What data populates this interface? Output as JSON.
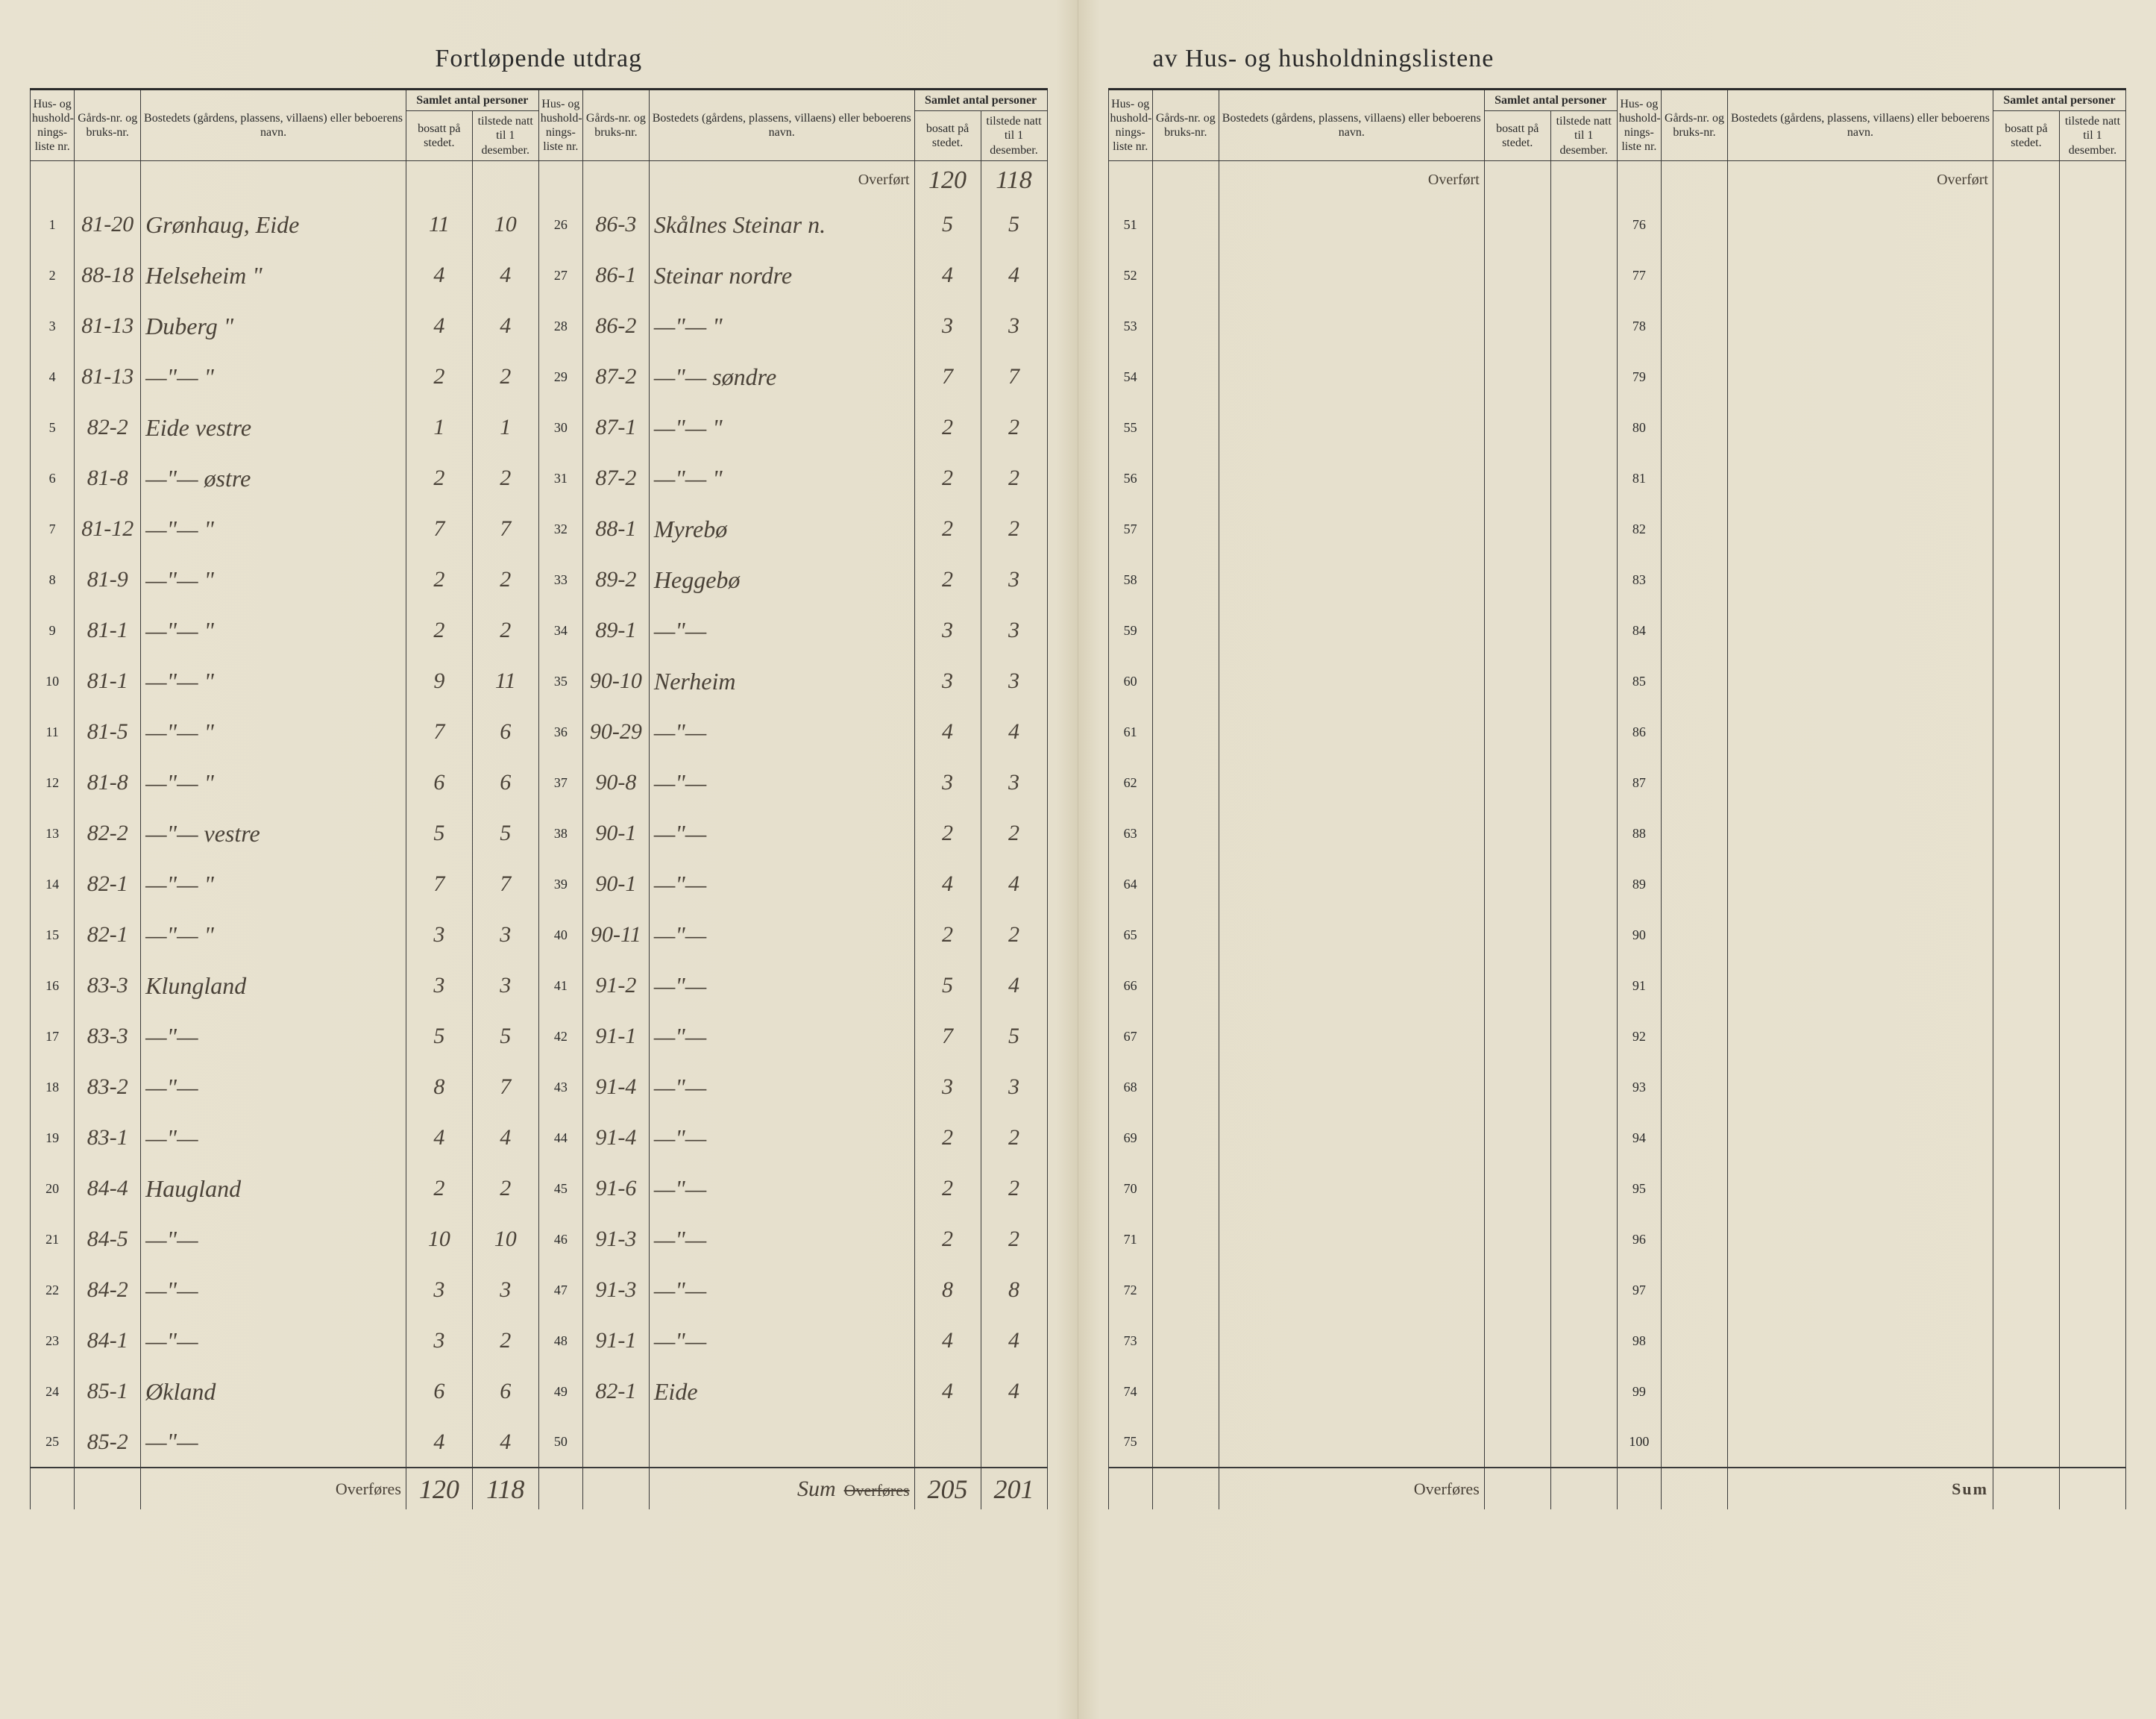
{
  "title_left": "Fortløpende utdrag",
  "title_right": "av Hus- og husholdningslistene",
  "headers": {
    "rownum": "Hus- og hushold-nings-liste nr.",
    "gard": "Gårds-nr. og bruks-nr.",
    "name": "Bostedets (gårdens, plassens, villaens) eller beboerens navn.",
    "group": "Samlet antal personer",
    "bosatt": "bosatt på stedet.",
    "tilstede": "tilstede natt til 1 desember."
  },
  "overfort_label": "Overført",
  "overfores_label": "Overføres",
  "sum_label": "Sum",
  "overfort_b": "120",
  "overfort_t": "118",
  "columns_left_1": [
    {
      "n": "1",
      "g": "81-20",
      "name": "Grønhaug, Eide",
      "b": "11",
      "t": "10"
    },
    {
      "n": "2",
      "g": "88-18",
      "name": "Helseheim     \"",
      "b": "4",
      "t": "4"
    },
    {
      "n": "3",
      "g": "81-13",
      "name": "Duberg        \"",
      "b": "4",
      "t": "4"
    },
    {
      "n": "4",
      "g": "81-13",
      "name": "—\"—           \"",
      "b": "2",
      "t": "2"
    },
    {
      "n": "5",
      "g": "82-2",
      "name": "Eide vestre",
      "b": "1",
      "t": "1"
    },
    {
      "n": "6",
      "g": "81-8",
      "name": "—\"—   østre",
      "b": "2",
      "t": "2"
    },
    {
      "n": "7",
      "g": "81-12",
      "name": "—\"—     \"",
      "b": "7",
      "t": "7"
    },
    {
      "n": "8",
      "g": "81-9",
      "name": "—\"—     \"",
      "b": "2",
      "t": "2"
    },
    {
      "n": "9",
      "g": "81-1",
      "name": "—\"—     \"",
      "b": "2",
      "t": "2"
    },
    {
      "n": "10",
      "g": "81-1",
      "name": "—\"—     \"",
      "b": "9",
      "t": "11"
    },
    {
      "n": "11",
      "g": "81-5",
      "name": "—\"—     \"",
      "b": "7",
      "t": "6"
    },
    {
      "n": "12",
      "g": "81-8",
      "name": "—\"—     \"",
      "b": "6",
      "t": "6"
    },
    {
      "n": "13",
      "g": "82-2",
      "name": "—\"—  vestre",
      "b": "5",
      "t": "5"
    },
    {
      "n": "14",
      "g": "82-1",
      "name": "—\"—     \"",
      "b": "7",
      "t": "7"
    },
    {
      "n": "15",
      "g": "82-1",
      "name": "—\"—     \"",
      "b": "3",
      "t": "3"
    },
    {
      "n": "16",
      "g": "83-3",
      "name": "Klungland",
      "b": "3",
      "t": "3"
    },
    {
      "n": "17",
      "g": "83-3",
      "name": "—\"—",
      "b": "5",
      "t": "5"
    },
    {
      "n": "18",
      "g": "83-2",
      "name": "—\"—",
      "b": "8",
      "t": "7"
    },
    {
      "n": "19",
      "g": "83-1",
      "name": "—\"—",
      "b": "4",
      "t": "4"
    },
    {
      "n": "20",
      "g": "84-4",
      "name": "Haugland",
      "b": "2",
      "t": "2"
    },
    {
      "n": "21",
      "g": "84-5",
      "name": "—\"—",
      "b": "10",
      "t": "10"
    },
    {
      "n": "22",
      "g": "84-2",
      "name": "—\"—",
      "b": "3",
      "t": "3"
    },
    {
      "n": "23",
      "g": "84-1",
      "name": "—\"—",
      "b": "3",
      "t": "2"
    },
    {
      "n": "24",
      "g": "85-1",
      "name": "Økland",
      "b": "6",
      "t": "6"
    },
    {
      "n": "25",
      "g": "85-2",
      "name": "—\"—",
      "b": "4",
      "t": "4"
    }
  ],
  "left1_sum_b": "120",
  "left1_sum_t": "118",
  "columns_left_2": [
    {
      "n": "26",
      "g": "86-3",
      "name": "Skålnes Steinar n.",
      "b": "5",
      "t": "5"
    },
    {
      "n": "27",
      "g": "86-1",
      "name": "Steinar nordre",
      "b": "4",
      "t": "4"
    },
    {
      "n": "28",
      "g": "86-2",
      "name": "—\"—     \"",
      "b": "3",
      "t": "3"
    },
    {
      "n": "29",
      "g": "87-2",
      "name": "—\"—  søndre",
      "b": "7",
      "t": "7"
    },
    {
      "n": "30",
      "g": "87-1",
      "name": "—\"—     \"",
      "b": "2",
      "t": "2"
    },
    {
      "n": "31",
      "g": "87-2",
      "name": "—\"—     \"",
      "b": "2",
      "t": "2"
    },
    {
      "n": "32",
      "g": "88-1",
      "name": "Myrebø",
      "b": "2",
      "t": "2"
    },
    {
      "n": "33",
      "g": "89-2",
      "name": "Heggebø",
      "b": "2",
      "t": "3"
    },
    {
      "n": "34",
      "g": "89-1",
      "name": "—\"—",
      "b": "3",
      "t": "3"
    },
    {
      "n": "35",
      "g": "90-10",
      "name": "Nerheim",
      "b": "3",
      "t": "3"
    },
    {
      "n": "36",
      "g": "90-29",
      "name": "—\"—",
      "b": "4",
      "t": "4"
    },
    {
      "n": "37",
      "g": "90-8",
      "name": "—\"—",
      "b": "3",
      "t": "3"
    },
    {
      "n": "38",
      "g": "90-1",
      "name": "—\"—",
      "b": "2",
      "t": "2"
    },
    {
      "n": "39",
      "g": "90-1",
      "name": "—\"—",
      "b": "4",
      "t": "4"
    },
    {
      "n": "40",
      "g": "90-11",
      "name": "—\"—",
      "b": "2",
      "t": "2"
    },
    {
      "n": "41",
      "g": "91-2",
      "name": "—\"—",
      "b": "5",
      "t": "4"
    },
    {
      "n": "42",
      "g": "91-1",
      "name": "—\"—",
      "b": "7",
      "t": "5"
    },
    {
      "n": "43",
      "g": "91-4",
      "name": "—\"—",
      "b": "3",
      "t": "3"
    },
    {
      "n": "44",
      "g": "91-4",
      "name": "—\"—",
      "b": "2",
      "t": "2"
    },
    {
      "n": "45",
      "g": "91-6",
      "name": "—\"—",
      "b": "2",
      "t": "2"
    },
    {
      "n": "46",
      "g": "91-3",
      "name": "—\"—",
      "b": "2",
      "t": "2"
    },
    {
      "n": "47",
      "g": "91-3",
      "name": "—\"—",
      "b": "8",
      "t": "8"
    },
    {
      "n": "48",
      "g": "91-1",
      "name": "—\"—",
      "b": "4",
      "t": "4"
    },
    {
      "n": "49",
      "g": "82-1",
      "name": "Eide",
      "b": "4",
      "t": "4"
    },
    {
      "n": "50",
      "g": "",
      "name": "",
      "b": "",
      "t": ""
    }
  ],
  "left2_sum_label": "Sum",
  "left2_sum_strike": "Overføres",
  "left2_sum_b": "205",
  "left2_sum_t": "201",
  "right_rows_1": [
    51,
    52,
    53,
    54,
    55,
    56,
    57,
    58,
    59,
    60,
    61,
    62,
    63,
    64,
    65,
    66,
    67,
    68,
    69,
    70,
    71,
    72,
    73,
    74,
    75
  ],
  "right_rows_2": [
    76,
    77,
    78,
    79,
    80,
    81,
    82,
    83,
    84,
    85,
    86,
    87,
    88,
    89,
    90,
    91,
    92,
    93,
    94,
    95,
    96,
    97,
    98,
    99,
    100
  ],
  "colors": {
    "paper": "#e8e2d0",
    "ink": "#2a2a2a",
    "handwriting": "#4a4238",
    "rule": "#3a3a3a"
  }
}
